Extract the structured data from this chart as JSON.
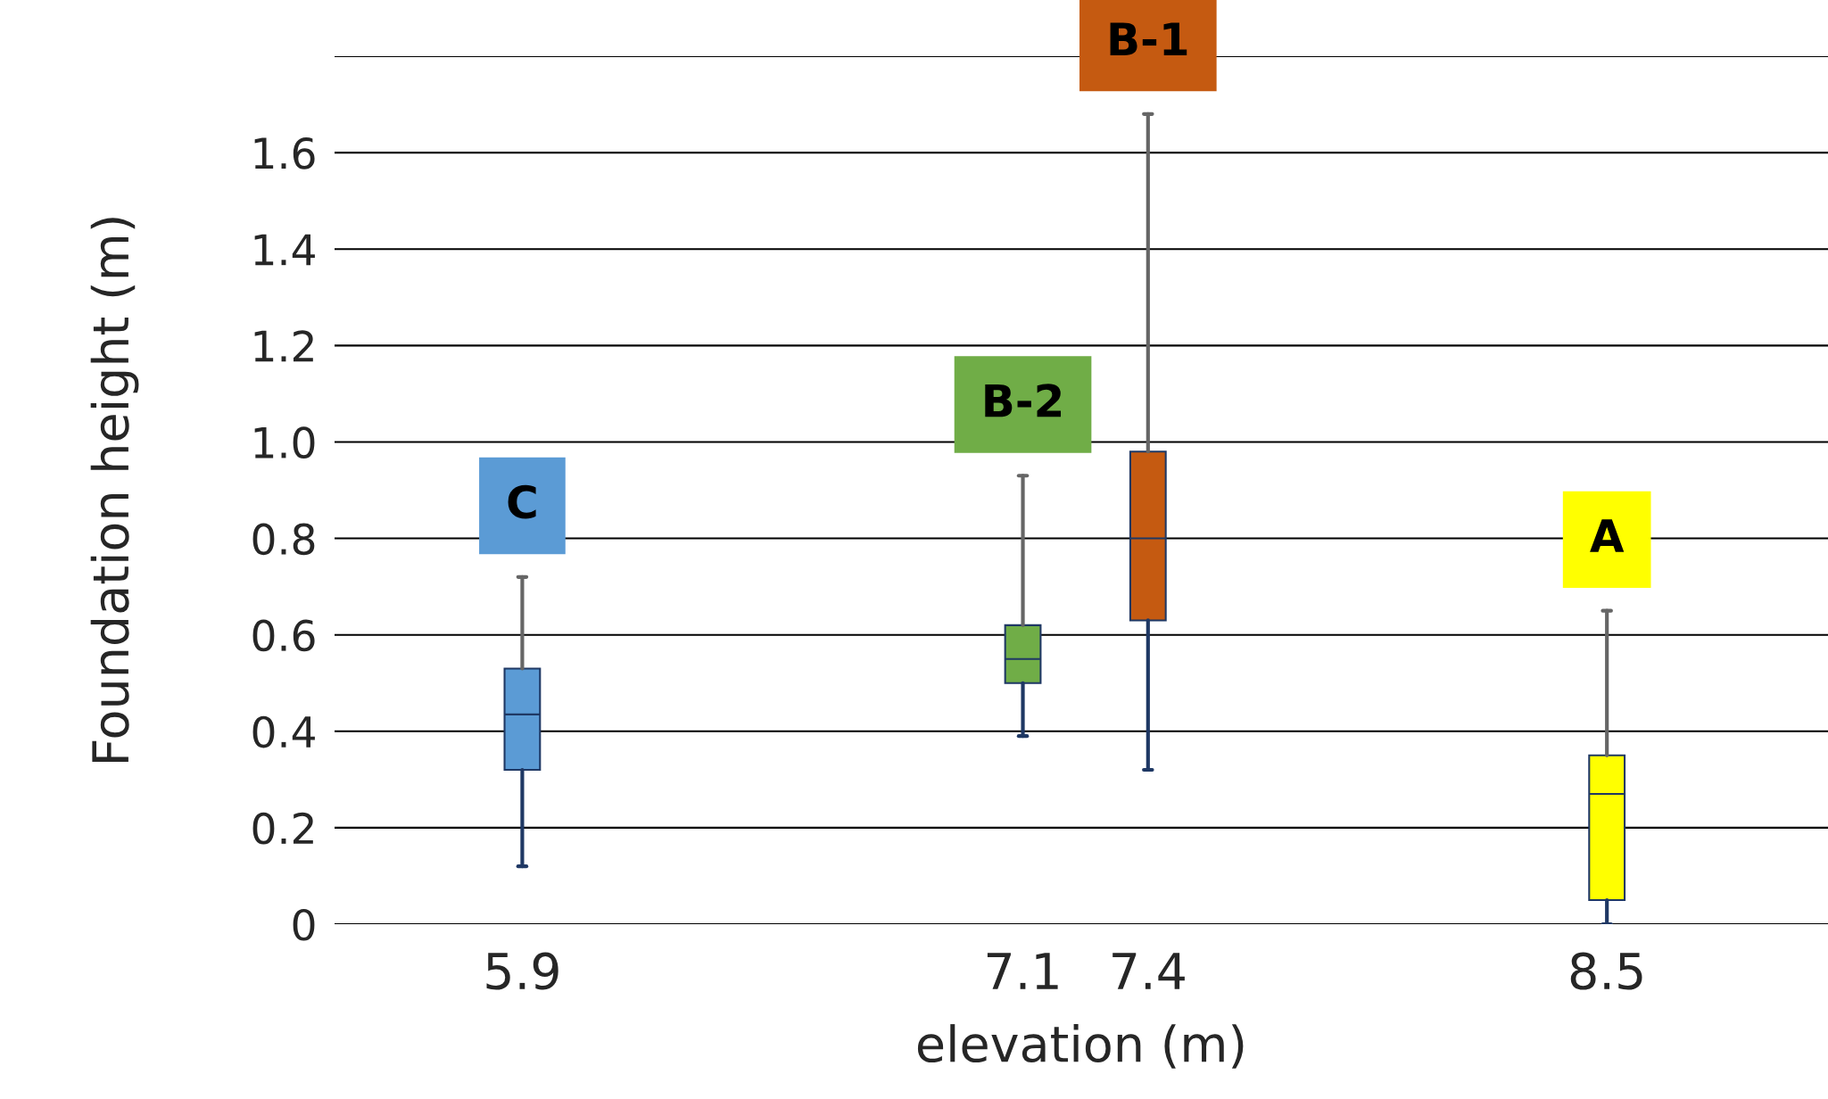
{
  "chart_data": {
    "type": "box",
    "xlabel": "elevation (m)",
    "ylabel": "Foundation height (m)",
    "x": [
      5.9,
      7.1,
      7.4,
      8.5
    ],
    "boxes": [
      {
        "low": 0.12,
        "q1": 0.32,
        "median": 0.435,
        "q3": 0.53,
        "high": 0.72
      },
      {
        "low": 0.39,
        "q1": 0.5,
        "median": 0.55,
        "q3": 0.62,
        "high": 0.93
      },
      {
        "low": 0.32,
        "q1": 0.63,
        "median": 0.8,
        "q3": 0.98,
        "high": 1.68
      },
      {
        "low": 0,
        "q1": 0.05,
        "median": 0.27,
        "q3": 0.35,
        "high": 0.65
      }
    ],
    "colors": [
      "#5b9bd5",
      "#70ad47",
      "#c55a11",
      "#ffff00"
    ],
    "annotations": [
      "C",
      "B-2",
      "B-1",
      "A"
    ],
    "xlim": [
      5.45,
      9.03
    ],
    "xticks": [
      5.9,
      7.1,
      7.4,
      8.5
    ],
    "ylim": [
      0,
      1.8
    ],
    "yticks": [
      0,
      0.2,
      0.4,
      0.6,
      0.8,
      {
        "value": 1,
        "label": "1.0"
      },
      1.2,
      1.4,
      1.6,
      {
        "value": 1.8,
        "label": null
      }
    ],
    "grid": "y",
    "legend": false
  }
}
